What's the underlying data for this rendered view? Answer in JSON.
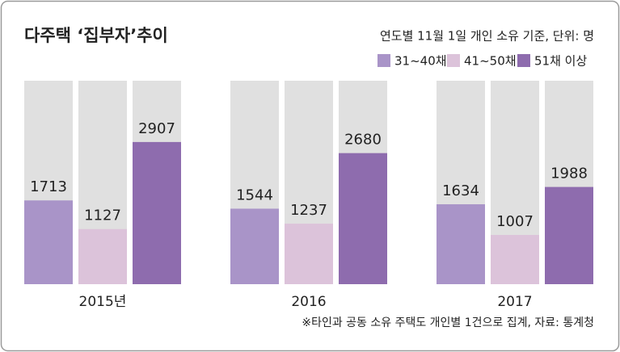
{
  "chart_data": {
    "type": "bar",
    "title": "다주택 ‘집부자’추이",
    "subtitle": "연도별 11월 1일  개인 소유 기준, 단위: 명",
    "note": "※타인과 공동 소유 주택도 개인별 1건으로 집계, 자료: 통계청",
    "categories": [
      "2015년",
      "2016",
      "2017"
    ],
    "series": [
      {
        "name": "31~40채",
        "color": "#a994c8",
        "values": [
          1713,
          1544,
          1634
        ]
      },
      {
        "name": "41~50채",
        "color": "#dcc3da",
        "values": [
          1127,
          1237,
          1007
        ]
      },
      {
        "name": "51채 이상",
        "color": "#8e6cae",
        "values": [
          2907,
          2680,
          1988
        ]
      }
    ],
    "ylim": [
      0,
      4160
    ],
    "background_color": "#e0e0e0"
  }
}
